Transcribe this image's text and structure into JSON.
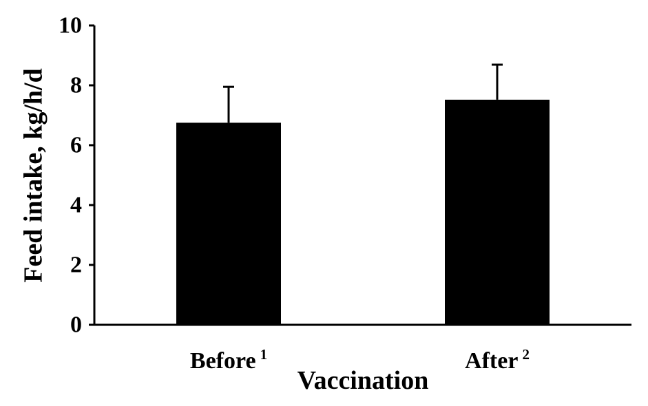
{
  "chart_data": {
    "type": "bar",
    "title": "",
    "xlabel": "Vaccination",
    "ylabel": "Feed intake, kg/h/d",
    "ylim": [
      0,
      10
    ],
    "yticks": [
      "0",
      "2",
      "4",
      "6",
      "8",
      "10"
    ],
    "grid": false,
    "categories": [
      {
        "label": "Before",
        "note": "1"
      },
      {
        "label": "After",
        "note": "2"
      }
    ],
    "values": [
      6.75,
      7.52
    ],
    "error_plus": [
      1.2,
      1.17
    ],
    "colors": {
      "bar": "#000000",
      "axis": "#000000"
    }
  }
}
